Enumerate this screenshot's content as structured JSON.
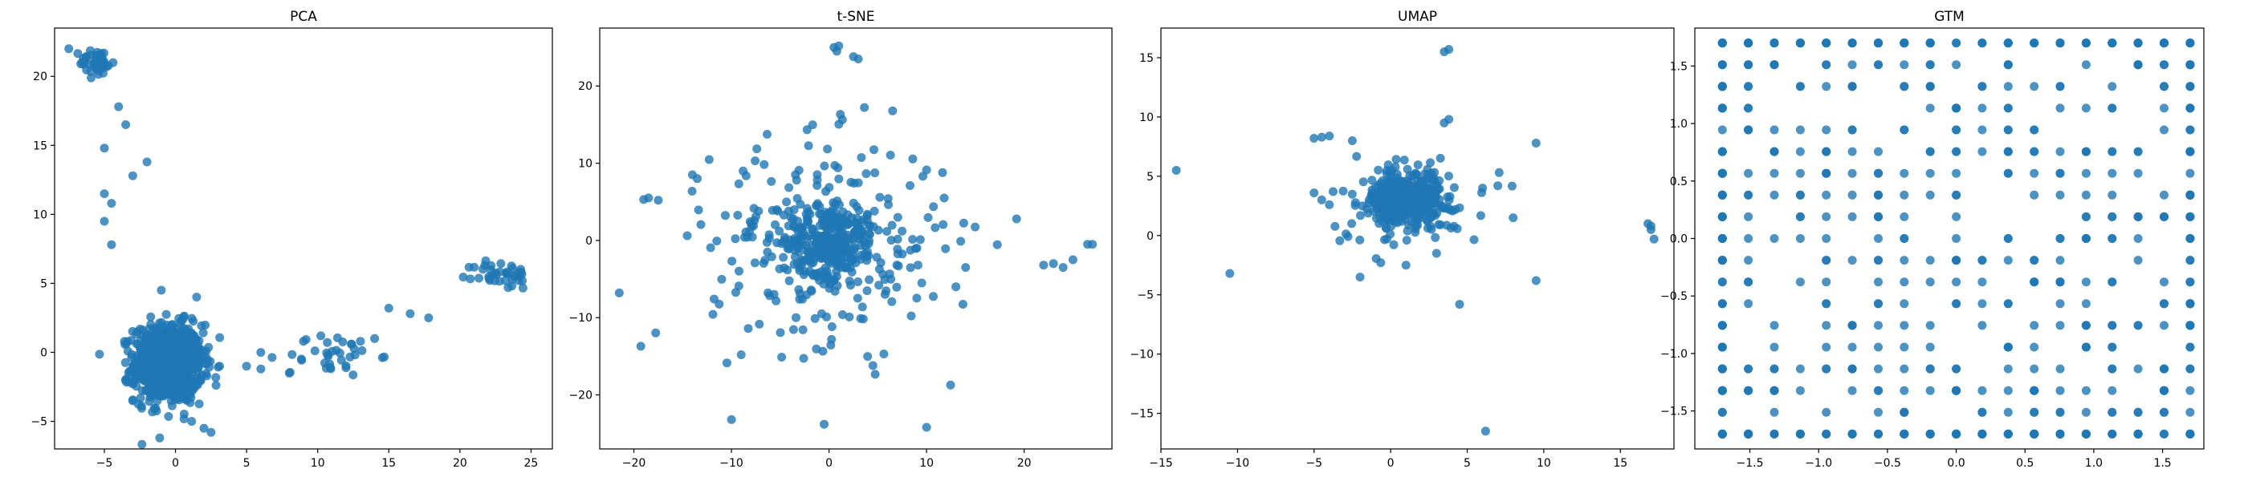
{
  "chart_data": [
    {
      "type": "scatter",
      "title": "PCA",
      "xlim": [
        -8.5,
        26.5
      ],
      "ylim": [
        -7.0,
        23.5
      ],
      "xticks": [
        -5,
        0,
        5,
        10,
        15,
        20,
        25
      ],
      "yticks": [
        -5,
        0,
        5,
        10,
        15,
        20
      ],
      "color": "#1f77b4",
      "clusters": [
        {
          "center": [
            -0.5,
            -0.8
          ],
          "spread": [
            1.2,
            1.4
          ],
          "n": 900
        },
        {
          "center": [
            -5.5,
            21.0
          ],
          "spread": [
            0.6,
            0.5
          ],
          "n": 45
        },
        {
          "center": [
            11.0,
            -0.2
          ],
          "spread": [
            1.6,
            0.8
          ],
          "n": 35
        },
        {
          "center": [
            23.0,
            5.6
          ],
          "spread": [
            1.0,
            0.5
          ],
          "n": 40
        }
      ],
      "points": [
        [
          -7.5,
          22.0
        ],
        [
          -4.0,
          17.8
        ],
        [
          -3.5,
          16.5
        ],
        [
          -5.0,
          14.8
        ],
        [
          -5.0,
          11.5
        ],
        [
          -4.5,
          10.8
        ],
        [
          -3.0,
          12.8
        ],
        [
          -2.0,
          13.8
        ],
        [
          -4.5,
          7.8
        ],
        [
          -5.0,
          9.5
        ],
        [
          8.0,
          -1.5
        ],
        [
          15.0,
          3.2
        ],
        [
          16.5,
          2.8
        ],
        [
          17.8,
          2.5
        ],
        [
          14.0,
          1.0
        ],
        [
          5.0,
          -1.0
        ],
        [
          6.0,
          -1.2
        ],
        [
          2.0,
          -5.5
        ],
        [
          2.5,
          -5.8
        ],
        [
          -1.0,
          4.5
        ],
        [
          13.0,
          0.8
        ],
        [
          9.0,
          0.8
        ]
      ]
    },
    {
      "type": "scatter",
      "title": "t-SNE",
      "xlim": [
        -23.5,
        29.0
      ],
      "ylim": [
        -27.0,
        27.5
      ],
      "xticks": [
        -20,
        -10,
        0,
        10,
        20
      ],
      "yticks": [
        -20,
        -10,
        0,
        10,
        20
      ],
      "color": "#1f77b4",
      "clusters": [
        {
          "center": [
            0.0,
            0.0
          ],
          "spread": [
            2.0,
            2.2
          ],
          "n": 220
        },
        {
          "center": [
            0.0,
            0.0
          ],
          "spread": [
            6.0,
            6.5
          ],
          "n": 300
        }
      ],
      "points": [
        [
          0.5,
          25.0
        ],
        [
          0.8,
          24.5
        ],
        [
          1.0,
          25.2
        ],
        [
          2.5,
          23.8
        ],
        [
          3.0,
          23.5
        ],
        [
          -18.5,
          5.5
        ],
        [
          -19.0,
          5.3
        ],
        [
          -17.5,
          5.2
        ],
        [
          -21.5,
          -6.8
        ],
        [
          -10.0,
          -23.2
        ],
        [
          -0.5,
          -23.8
        ],
        [
          10.0,
          -24.2
        ],
        [
          23.0,
          -3.0
        ],
        [
          24.0,
          -3.5
        ],
        [
          25.0,
          -2.5
        ],
        [
          26.5,
          -0.5
        ],
        [
          27.0,
          -0.5
        ],
        [
          22.0,
          -3.2
        ],
        [
          -14.0,
          8.5
        ],
        [
          -13.5,
          8.0
        ],
        [
          -9.0,
          -14.8
        ],
        [
          14.0,
          -3.5
        ],
        [
          13.0,
          -6.0
        ],
        [
          4.5,
          -16.2
        ]
      ]
    },
    {
      "type": "scatter",
      "title": "UMAP",
      "xlim": [
        -15.0,
        18.5
      ],
      "ylim": [
        -18.0,
        17.5
      ],
      "xticks": [
        -15,
        -10,
        -5,
        0,
        5,
        10,
        15
      ],
      "yticks": [
        -15,
        -10,
        -5,
        0,
        5,
        10,
        15
      ],
      "color": "#1f77b4",
      "clusters": [
        {
          "center": [
            1.0,
            3.0
          ],
          "spread": [
            1.1,
            0.9
          ],
          "n": 450
        },
        {
          "center": [
            1.0,
            3.0
          ],
          "spread": [
            2.5,
            2.0
          ],
          "n": 120
        }
      ],
      "points": [
        [
          -14.0,
          5.5
        ],
        [
          -10.5,
          -3.2
        ],
        [
          -5.0,
          8.2
        ],
        [
          -4.5,
          8.3
        ],
        [
          -4.0,
          8.4
        ],
        [
          -5.0,
          3.6
        ],
        [
          -4.5,
          3.0
        ],
        [
          -4.0,
          2.6
        ],
        [
          3.5,
          15.5
        ],
        [
          3.8,
          15.7
        ],
        [
          3.5,
          9.5
        ],
        [
          3.8,
          9.8
        ],
        [
          6.0,
          4.0
        ],
        [
          7.0,
          4.2
        ],
        [
          8.0,
          1.5
        ],
        [
          9.5,
          7.8
        ],
        [
          9.5,
          -3.8
        ],
        [
          4.5,
          -5.8
        ],
        [
          6.2,
          -16.5
        ],
        [
          16.8,
          1.0
        ],
        [
          17.0,
          0.5
        ],
        [
          17.2,
          -0.3
        ],
        [
          17.0,
          0.8
        ],
        [
          -2.0,
          -3.5
        ],
        [
          1.0,
          -2.5
        ],
        [
          3.0,
          -1.5
        ],
        [
          -2.5,
          8.0
        ]
      ]
    },
    {
      "type": "scatter",
      "title": "GTM",
      "xlim": [
        -1.9,
        1.8
      ],
      "ylim": [
        -1.83,
        1.83
      ],
      "xticks": [
        -1.5,
        -1.0,
        -0.5,
        0.0,
        0.5,
        1.0,
        1.5
      ],
      "yticks": [
        -1.5,
        -1.0,
        -0.5,
        0.0,
        0.5,
        1.0,
        1.5
      ],
      "color": "#1f77b4",
      "grid_points": 19,
      "grid_extent": [
        -1.7,
        1.7
      ],
      "n_points": 700
    }
  ]
}
